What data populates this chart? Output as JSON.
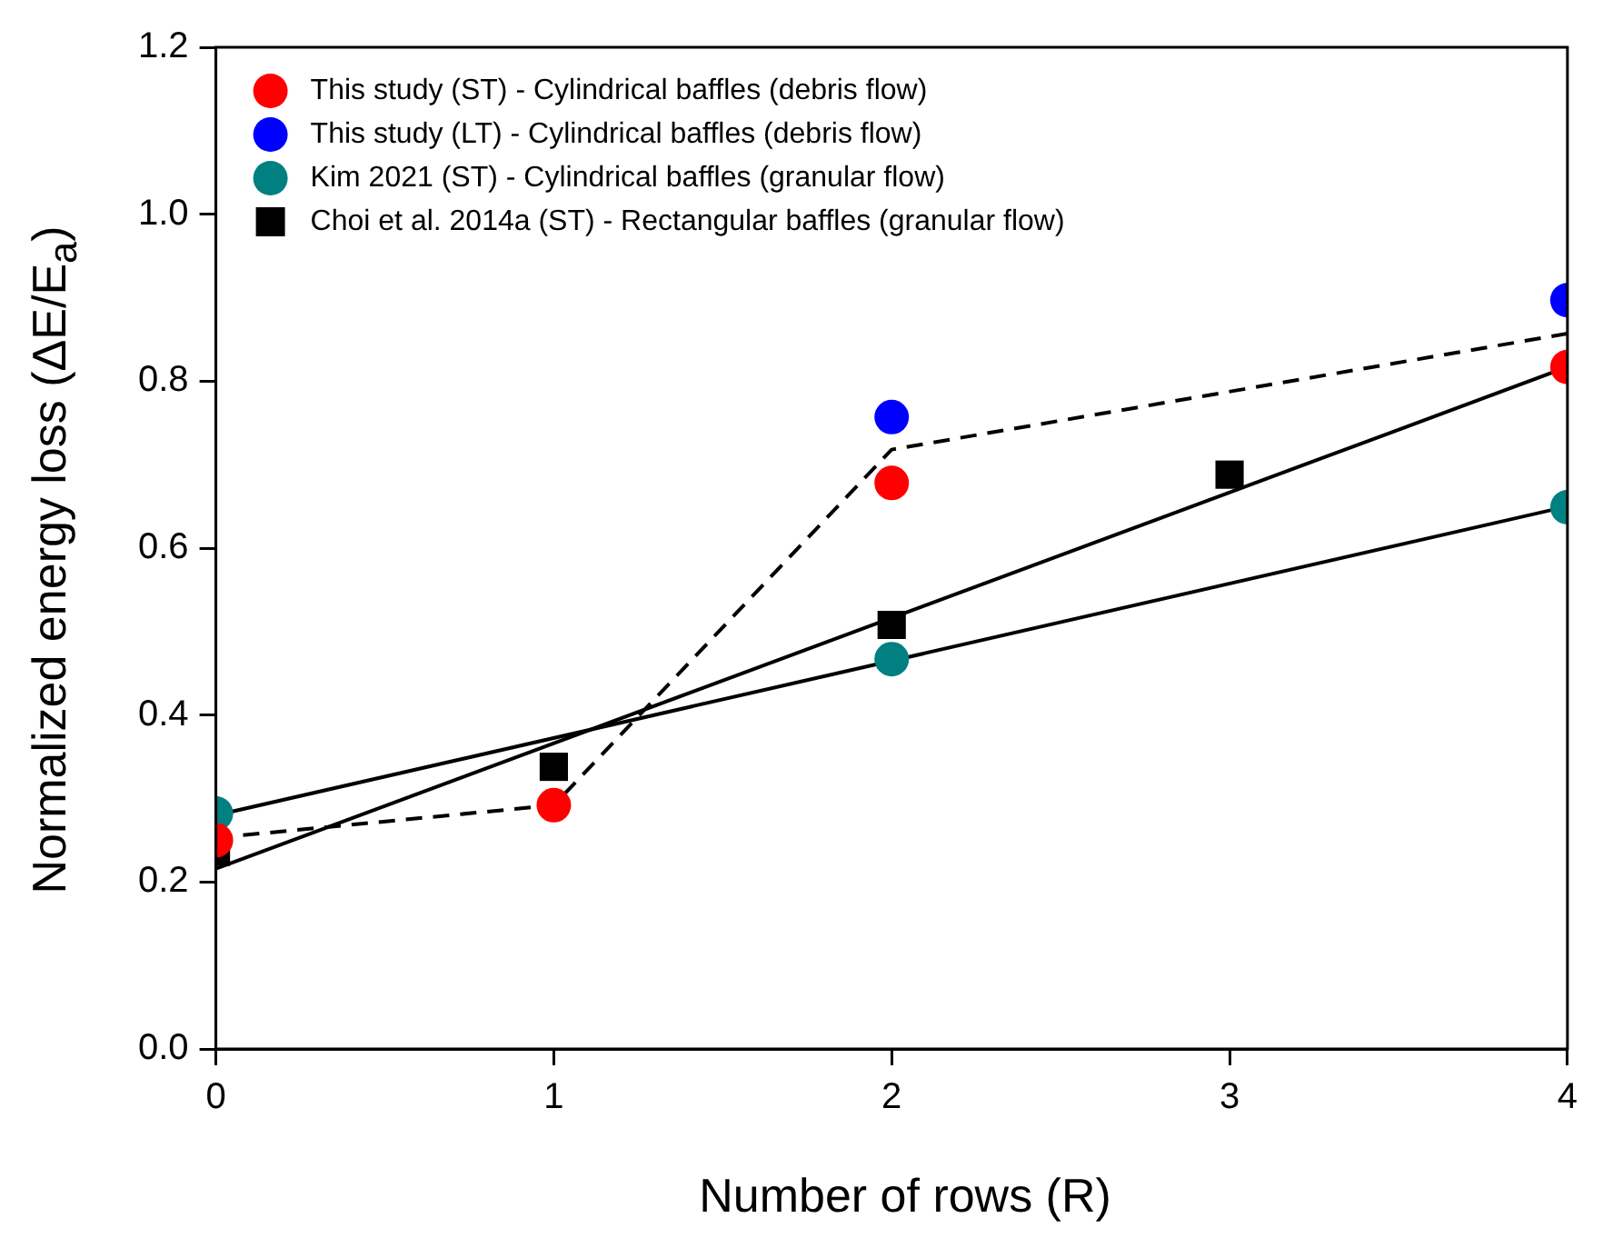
{
  "chart_data": {
    "type": "scatter",
    "xlabel": "Number of rows (R)",
    "ylabel": "Normalized energy loss (ΔE/E$_{a}$)",
    "xlim": [
      0,
      4
    ],
    "xticks": [
      0,
      1,
      2,
      3,
      4
    ],
    "ylim": [
      0,
      1.2
    ],
    "yticks": [
      {
        "value": 0,
        "label": "0.0"
      },
      0.2,
      0.4,
      0.6,
      0.8,
      {
        "value": 1,
        "label": "1.0"
      },
      1.2
    ],
    "legend": "top left",
    "series": [
      {
        "name": "This study (ST) - Cylindrical baffles (debris flow)",
        "color": "#ff0000",
        "marker": "circle",
        "x": [
          0,
          1,
          2,
          4
        ],
        "values": [
          0.25,
          0.292,
          0.678,
          0.817
        ]
      },
      {
        "name": "This study (LT) - Cylindrical baffles (debris flow)",
        "color": "#0000ff",
        "marker": "circle",
        "x": [
          2,
          4
        ],
        "values": [
          0.757,
          0.897
        ]
      },
      {
        "name": "Kim 2021 (ST) - Cylindrical baffles (granular flow)",
        "color": "#008080",
        "marker": "circle",
        "x": [
          0,
          2,
          4
        ],
        "values": [
          0.282,
          0.467,
          0.649
        ]
      },
      {
        "name": "Choi et al. 2014a (ST) - Rectangular baffles (granular flow)",
        "color": "#000000",
        "marker": "square",
        "x": [
          0,
          1,
          2,
          3
        ],
        "values": [
          0.236,
          0.338,
          0.508,
          0.688
        ]
      },
      {
        "type": "line",
        "color": "#000000",
        "marker": "none",
        "line_style": "dashed",
        "x": [
          0,
          1,
          2,
          4
        ],
        "values": [
          0.253,
          0.292,
          0.718,
          0.857
        ]
      },
      {
        "type": "line",
        "color": "#000000",
        "marker": "none",
        "line_style": "solid",
        "x": [
          0,
          4
        ],
        "values": [
          0.216,
          0.817
        ]
      },
      {
        "type": "line",
        "color": "#000000",
        "marker": "none",
        "line_style": "solid",
        "x": [
          0,
          4
        ],
        "values": [
          0.28,
          0.65
        ]
      }
    ]
  }
}
